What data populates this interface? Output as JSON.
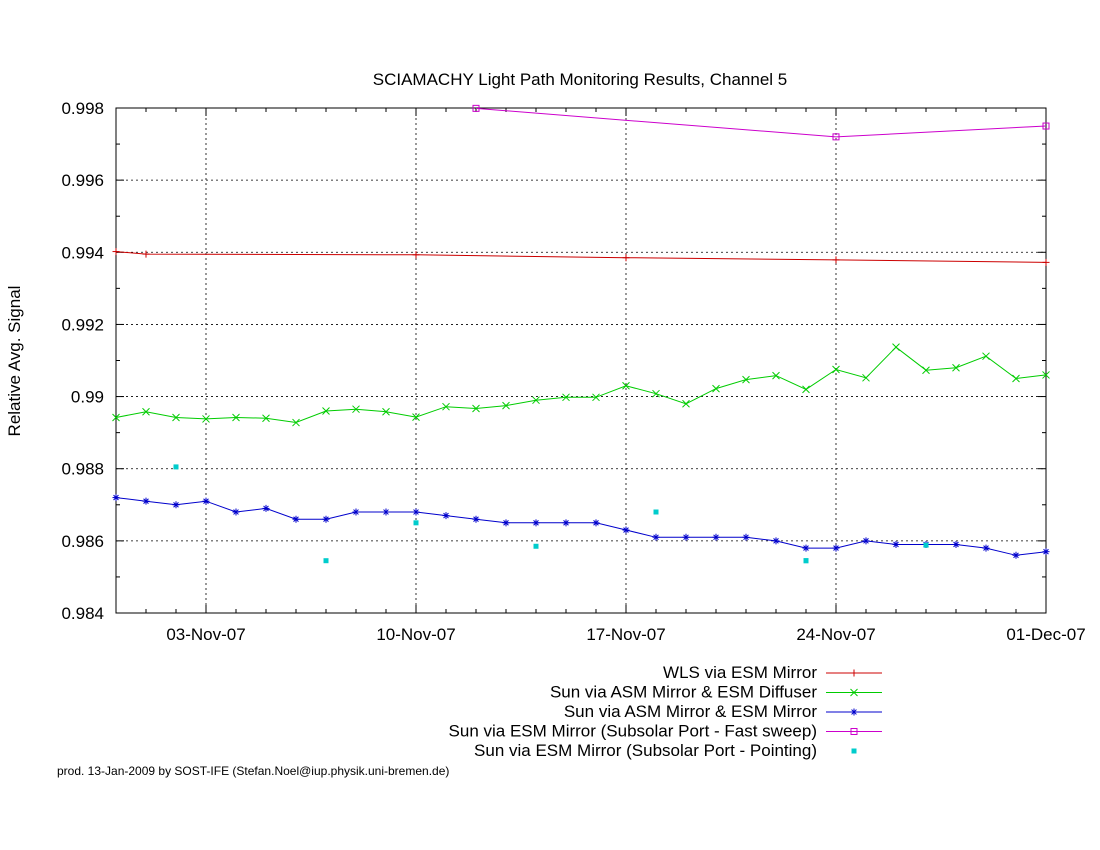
{
  "chart_data": {
    "type": "line",
    "title": "SCIAMACHY Light Path Monitoring Results, Channel 5",
    "xlabel": "",
    "ylabel": "Relative Avg. Signal",
    "ylim": [
      0.984,
      0.998
    ],
    "xlim": [
      "2007-10-31",
      "2007-12-01"
    ],
    "yticks": [
      {
        "value": 0.984,
        "label": "0.984"
      },
      {
        "value": 0.986,
        "label": "0.986"
      },
      {
        "value": 0.988,
        "label": "0.988"
      },
      {
        "value": 0.99,
        "label": "0.99"
      },
      {
        "value": 0.992,
        "label": "0.992"
      },
      {
        "value": 0.994,
        "label": "0.994"
      },
      {
        "value": 0.996,
        "label": "0.996"
      },
      {
        "value": 0.998,
        "label": "0.998"
      }
    ],
    "xticks": [
      {
        "date": "2007-11-03",
        "label": "03-Nov-07"
      },
      {
        "date": "2007-11-10",
        "label": "10-Nov-07"
      },
      {
        "date": "2007-11-17",
        "label": "17-Nov-07"
      },
      {
        "date": "2007-11-24",
        "label": "24-Nov-07"
      },
      {
        "date": "2007-12-01",
        "label": "01-Dec-07"
      }
    ],
    "grid": true,
    "legend_position": "bottom",
    "series": [
      {
        "name": "WLS via ESM Mirror",
        "color": "#cc0000",
        "marker": "plus",
        "x": [
          "2007-10-31",
          "2007-11-01",
          "2007-11-10",
          "2007-11-17",
          "2007-11-24",
          "2007-12-01"
        ],
        "y": [
          0.99402,
          0.99395,
          0.99393,
          0.99385,
          0.99379,
          0.99372
        ]
      },
      {
        "name": "Sun via ASM Mirror & ESM Diffuser",
        "color": "#00cc00",
        "marker": "x",
        "x": [
          "2007-10-31",
          "2007-11-01",
          "2007-11-02",
          "2007-11-03",
          "2007-11-04",
          "2007-11-05",
          "2007-11-06",
          "2007-11-07",
          "2007-11-08",
          "2007-11-09",
          "2007-11-10",
          "2007-11-11",
          "2007-11-12",
          "2007-11-13",
          "2007-11-14",
          "2007-11-15",
          "2007-11-16",
          "2007-11-17",
          "2007-11-18",
          "2007-11-19",
          "2007-11-20",
          "2007-11-21",
          "2007-11-22",
          "2007-11-23",
          "2007-11-24",
          "2007-11-25",
          "2007-11-26",
          "2007-11-27",
          "2007-11-28",
          "2007-11-29",
          "2007-11-30",
          "2007-12-01"
        ],
        "y": [
          0.98942,
          0.98958,
          0.98942,
          0.98938,
          0.98942,
          0.9894,
          0.98928,
          0.9896,
          0.98965,
          0.98958,
          0.98943,
          0.98972,
          0.98967,
          0.98975,
          0.9899,
          0.98998,
          0.98998,
          0.9903,
          0.99008,
          0.9898,
          0.99022,
          0.99047,
          0.99058,
          0.9902,
          0.99075,
          0.99052,
          0.99137,
          0.99073,
          0.9908,
          0.99112,
          0.9905,
          0.9906
        ]
      },
      {
        "name": "Sun via ASM Mirror & ESM Mirror",
        "color": "#0000cc",
        "marker": "star",
        "x": [
          "2007-10-31",
          "2007-11-01",
          "2007-11-02",
          "2007-11-03",
          "2007-11-04",
          "2007-11-05",
          "2007-11-06",
          "2007-11-07",
          "2007-11-08",
          "2007-11-09",
          "2007-11-10",
          "2007-11-11",
          "2007-11-12",
          "2007-11-13",
          "2007-11-14",
          "2007-11-15",
          "2007-11-16",
          "2007-11-17",
          "2007-11-18",
          "2007-11-19",
          "2007-11-20",
          "2007-11-21",
          "2007-11-22",
          "2007-11-23",
          "2007-11-24",
          "2007-11-25",
          "2007-11-26",
          "2007-11-27",
          "2007-11-28",
          "2007-11-29",
          "2007-11-30",
          "2007-12-01"
        ],
        "y": [
          0.9872,
          0.9871,
          0.987,
          0.9871,
          0.9868,
          0.9869,
          0.9866,
          0.9866,
          0.9868,
          0.9868,
          0.9868,
          0.9867,
          0.9866,
          0.9865,
          0.9865,
          0.9865,
          0.9865,
          0.9863,
          0.9861,
          0.9861,
          0.9861,
          0.9861,
          0.986,
          0.9858,
          0.9858,
          0.986,
          0.9859,
          0.9859,
          0.9859,
          0.9858,
          0.9856,
          0.9857
        ]
      },
      {
        "name": "Sun via ESM Mirror (Subsolar Port - Fast sweep)",
        "color": "#cc00cc",
        "marker": "square",
        "x": [
          "2007-11-12",
          "2007-11-24",
          "2007-12-01"
        ],
        "y": [
          0.99799,
          0.9972,
          0.9975
        ]
      },
      {
        "name": "Sun via ESM Mirror (Subsolar Port - Pointing)",
        "color": "#00cccc",
        "marker": "dot",
        "x": [
          "2007-11-02",
          "2007-11-07",
          "2007-11-10",
          "2007-11-14",
          "2007-11-18",
          "2007-11-23",
          "2007-11-23",
          "2007-11-27"
        ],
        "y": [
          0.98805,
          0.98545,
          0.9865,
          0.98585,
          0.9868,
          0.98545,
          0.98545,
          0.98588
        ]
      }
    ]
  },
  "footer": "prod. 13-Jan-2009 by SOST-IFE (Stefan.Noel@iup.physik.uni-bremen.de)"
}
